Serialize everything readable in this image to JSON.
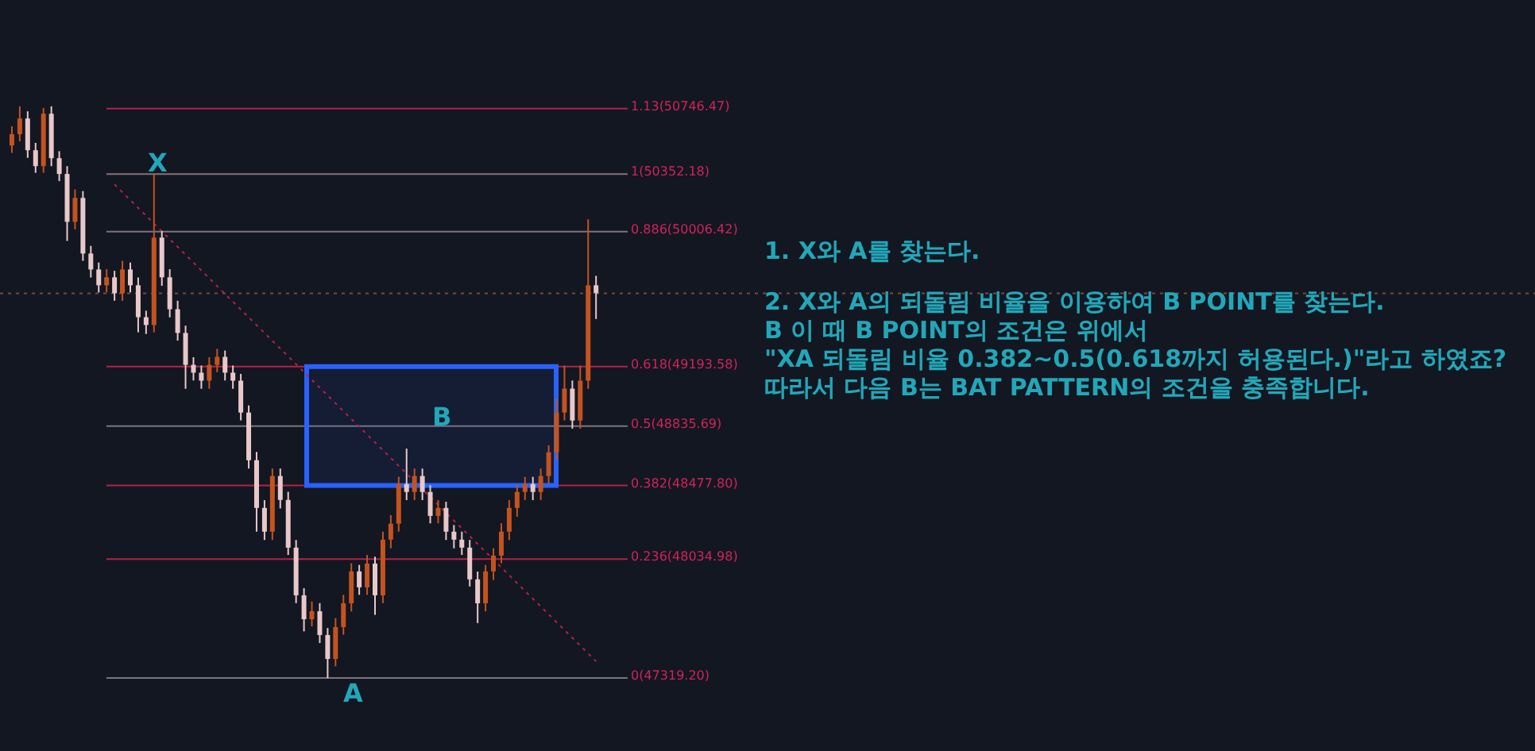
{
  "chart_data": {
    "type": "candlestick",
    "categories": [
      null,
      null,
      null,
      null,
      null,
      null,
      null,
      null,
      null,
      null,
      null,
      null,
      null,
      null,
      null,
      null,
      null,
      null,
      null,
      null,
      null,
      null,
      null,
      null,
      null,
      null,
      null,
      null,
      null,
      null,
      null,
      null,
      null,
      null,
      null,
      null,
      null,
      null,
      null,
      null,
      null,
      null,
      null,
      null,
      null,
      null,
      null,
      null,
      null,
      null,
      null,
      null,
      null,
      null,
      null,
      null,
      null,
      null,
      null,
      null,
      null,
      null,
      null,
      null,
      null,
      null,
      null,
      null,
      null,
      null,
      null,
      null,
      null,
      null,
      null
    ],
    "ohlc": [
      [
        50525,
        50640,
        50480,
        50592
      ],
      [
        50592,
        50760,
        50550,
        50687
      ],
      [
        50687,
        50730,
        50450,
        50496
      ],
      [
        50496,
        50540,
        50360,
        50400
      ],
      [
        50400,
        50750,
        50360,
        50716
      ],
      [
        50716,
        50760,
        50400,
        50448
      ],
      [
        50448,
        50490,
        50310,
        50353
      ],
      [
        50353,
        50400,
        49950,
        50065
      ],
      [
        50065,
        50260,
        50020,
        50209
      ],
      [
        50209,
        50250,
        49830,
        49874
      ],
      [
        49874,
        49920,
        49730,
        49778
      ],
      [
        49778,
        49820,
        49640,
        49683
      ],
      [
        49683,
        49780,
        49640,
        49731
      ],
      [
        49731,
        49770,
        49590,
        49635
      ],
      [
        49635,
        49830,
        49590,
        49778
      ],
      [
        49778,
        49820,
        49640,
        49683
      ],
      [
        49683,
        49730,
        49400,
        49491
      ],
      [
        49491,
        49530,
        49390,
        49444
      ],
      [
        49444,
        50352,
        49400,
        49970
      ],
      [
        49970,
        50010,
        49680,
        49731
      ],
      [
        49731,
        49780,
        49490,
        49539
      ],
      [
        49539,
        49590,
        49350,
        49396
      ],
      [
        49396,
        49440,
        49060,
        49204
      ],
      [
        49204,
        49250,
        49110,
        49157
      ],
      [
        49157,
        49200,
        49060,
        49109
      ],
      [
        49109,
        49250,
        49060,
        49204
      ],
      [
        49204,
        49300,
        49160,
        49252
      ],
      [
        49252,
        49290,
        49110,
        49157
      ],
      [
        49157,
        49200,
        49060,
        49109
      ],
      [
        49109,
        49150,
        48870,
        48917
      ],
      [
        48917,
        48960,
        48580,
        48630
      ],
      [
        48630,
        48680,
        48200,
        48343
      ],
      [
        48343,
        48390,
        48150,
        48200
      ],
      [
        48200,
        48580,
        48150,
        48535
      ],
      [
        48535,
        48580,
        48340,
        48391
      ],
      [
        48391,
        48440,
        48060,
        48104
      ],
      [
        48104,
        48150,
        47770,
        47817
      ],
      [
        47817,
        47860,
        47600,
        47673
      ],
      [
        47673,
        47780,
        47630,
        47721
      ],
      [
        47721,
        47770,
        47530,
        47578
      ],
      [
        47578,
        47620,
        47319,
        47434
      ],
      [
        47434,
        47680,
        47390,
        47626
      ],
      [
        47626,
        47820,
        47580,
        47769
      ],
      [
        47769,
        48010,
        47720,
        47961
      ],
      [
        47961,
        48000,
        47820,
        47865
      ],
      [
        47865,
        48060,
        47820,
        48008
      ],
      [
        48008,
        48050,
        47700,
        47817
      ],
      [
        47817,
        48200,
        47770,
        48152
      ],
      [
        48152,
        48300,
        48100,
        48248
      ],
      [
        48248,
        48530,
        48200,
        48487
      ],
      [
        48487,
        48700,
        48390,
        48439
      ],
      [
        48439,
        48580,
        48390,
        48535
      ],
      [
        48535,
        48580,
        48390,
        48439
      ],
      [
        48439,
        48480,
        48250,
        48295
      ],
      [
        48295,
        48390,
        48250,
        48343
      ],
      [
        48343,
        48380,
        48150,
        48200
      ],
      [
        48200,
        48240,
        48100,
        48152
      ],
      [
        48152,
        48200,
        48060,
        48104
      ],
      [
        48104,
        48150,
        47870,
        47913
      ],
      [
        47913,
        47960,
        47650,
        47769
      ],
      [
        47769,
        48000,
        47720,
        47961
      ],
      [
        47961,
        48100,
        47910,
        48056
      ],
      [
        48056,
        48250,
        48010,
        48200
      ],
      [
        48200,
        48390,
        48150,
        48343
      ],
      [
        48343,
        48480,
        48290,
        48439
      ],
      [
        48439,
        48530,
        48390,
        48487
      ],
      [
        48487,
        48530,
        48390,
        48439
      ],
      [
        48439,
        48580,
        48390,
        48535
      ],
      [
        48535,
        48720,
        48490,
        48678
      ],
      [
        48678,
        49000,
        48630,
        48917
      ],
      [
        48917,
        49200,
        48870,
        49061
      ],
      [
        49061,
        49110,
        48820,
        48869
      ],
      [
        48869,
        49200,
        48820,
        49109
      ],
      [
        49109,
        50080,
        49060,
        49683
      ],
      [
        49683,
        49740,
        49480,
        49635
      ]
    ],
    "colors": [
      "#c4531f",
      "#c4531f",
      "#e8c8c8",
      "#e8c8c8",
      "#c4531f",
      "#e8c8c8",
      "#e8c8c8",
      "#e8c8c8",
      "#c4531f",
      "#e8c8c8",
      "#e8c8c8",
      "#e8c8c8",
      "#c4531f",
      "#e8c8c8",
      "#c4531f",
      "#e8c8c8",
      "#e8c8c8",
      "#e8c8c8",
      "#c4531f",
      "#e8c8c8",
      "#e8c8c8",
      "#e8c8c8",
      "#e8c8c8",
      "#e8c8c8",
      "#e8c8c8",
      "#c4531f",
      "#c4531f",
      "#e8c8c8",
      "#e8c8c8",
      "#e8c8c8",
      "#e8c8c8",
      "#e8c8c8",
      "#e8c8c8",
      "#c4531f",
      "#e8c8c8",
      "#e8c8c8",
      "#e8c8c8",
      "#e8c8c8",
      "#c4531f",
      "#e8c8c8",
      "#e8c8c8",
      "#c4531f",
      "#c4531f",
      "#c4531f",
      "#e8c8c8",
      "#c4531f",
      "#e8c8c8",
      "#c4531f",
      "#c4531f",
      "#c4531f",
      "#e8c8c8",
      "#c4531f",
      "#e8c8c8",
      "#e8c8c8",
      "#c4531f",
      "#e8c8c8",
      "#e8c8c8",
      "#e8c8c8",
      "#e8c8c8",
      "#e8c8c8",
      "#c4531f",
      "#c4531f",
      "#c4531f",
      "#c4531f",
      "#c4531f",
      "#c4531f",
      "#e8c8c8",
      "#c4531f",
      "#c4531f",
      "#c4531f",
      "#c4531f",
      "#e8c8c8",
      "#c4531f",
      "#c4531f",
      "#e8c8c8"
    ],
    "series": [
      {
        "type": "line",
        "values": [
          null,
          null,
          null,
          null,
          null,
          null,
          null,
          null,
          null,
          null,
          null,
          null,
          null,
          50290,
          null,
          null,
          null,
          null,
          null,
          null,
          null,
          null,
          null,
          null,
          null,
          null,
          null,
          null,
          null,
          null,
          null,
          null,
          null,
          null,
          null,
          null,
          null,
          null,
          null,
          null,
          null,
          null,
          null,
          null,
          null,
          null,
          null,
          null,
          null,
          null,
          null,
          null,
          null,
          null,
          null,
          null,
          null,
          null,
          null,
          null,
          null,
          null,
          null,
          null,
          null,
          null,
          null,
          null,
          null,
          null,
          null,
          null,
          null,
          null,
          47420
        ],
        "color": "#b2224a",
        "line_style": "dotted"
      }
    ],
    "ylim": [
      46880,
      51400
    ],
    "tick_labels": false,
    "ref_lines": [
      {
        "axis": "y",
        "value": 50746.47,
        "label": "1.13(50746.47)",
        "color": "#b2224a"
      },
      {
        "axis": "y",
        "value": 50352.18,
        "label": "1(50352.18)",
        "color": "#8a6f78"
      },
      {
        "axis": "y",
        "value": 50006.42,
        "label": "0.886(50006.42)",
        "color": "#7b7480"
      },
      {
        "axis": "y",
        "value": 49193.58,
        "label": "0.618(49193.58)",
        "color": "#b2224a"
      },
      {
        "axis": "y",
        "value": 48835.69,
        "label": "0.5(48835.69)",
        "color": "#7b7480"
      },
      {
        "axis": "y",
        "value": 48477.8,
        "label": "0.382(48477.80)",
        "color": "#b2224a"
      },
      {
        "axis": "y",
        "value": 48034.98,
        "label": "0.236(48034.98)",
        "color": "#b2224a"
      },
      {
        "axis": "y",
        "value": 47319.2,
        "label": "0(47319.20)",
        "color": "#7b7480"
      },
      {
        "axis": "y",
        "value": 49635,
        "color": "#7a4a36",
        "line_style": "dotted"
      }
    ],
    "bands": [
      {
        "axis": "y",
        "from": 48477.8,
        "to": 49193.58,
        "color": "#2962ff"
      }
    ],
    "annotations": [
      "X",
      "A",
      "B",
      "1. X와 A를 찾는다.",
      "2. X와 A의 되돌림 비율을 이용하여 B POINT를 찾는다.",
      "B 이 때 B POINT의 조건은 위에서",
      "\"XA 되돌림 비율 0.382~0.5(0.618까지 허용된다.)\"라고 하였죠?",
      "따라서 다음 B는 BAT PATTERN의 조건을 충족합니다."
    ]
  }
}
